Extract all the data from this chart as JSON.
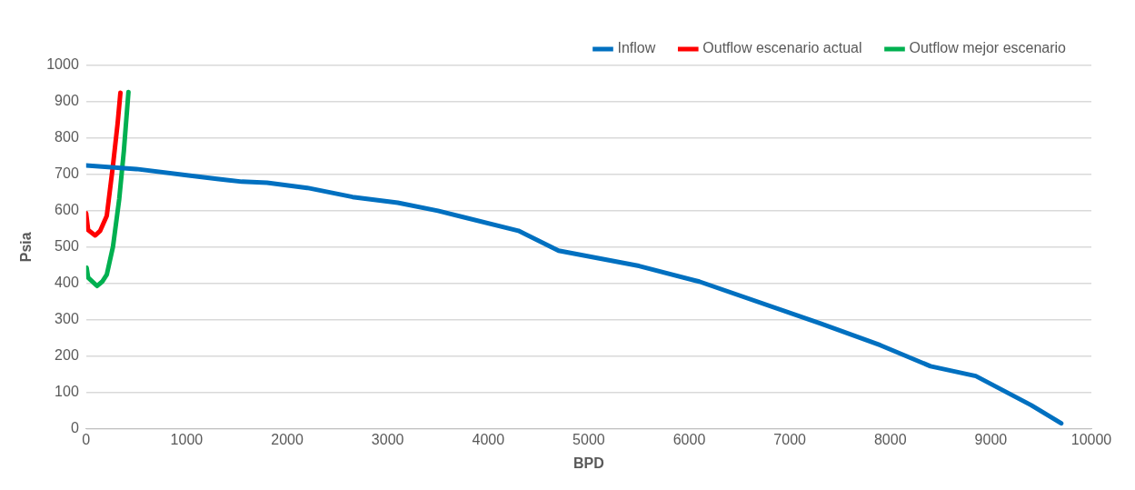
{
  "chart_data": {
    "type": "line",
    "xlabel": "BPD",
    "ylabel": "Psia",
    "xlim": [
      0,
      10000
    ],
    "xticks": [
      0,
      1000,
      2000,
      3000,
      4000,
      5000,
      6000,
      7000,
      8000,
      9000,
      10000
    ],
    "ylim": [
      0,
      1000
    ],
    "yticks": [
      0,
      100,
      200,
      300,
      400,
      500,
      600,
      700,
      800,
      900,
      1000
    ],
    "grid": "y",
    "legend": "top right",
    "marker": "none",
    "line_style": "solid",
    "series": [
      {
        "name": "Inflow",
        "color": "#0070c0",
        "x": [
          0,
          500,
          1000,
          1300,
          1550,
          1800,
          2200,
          2650,
          3100,
          3500,
          4300,
          4700,
          5500,
          6100,
          7300,
          7900,
          8400,
          8850,
          9400,
          9700
        ],
        "values": [
          725,
          715,
          698,
          688,
          680,
          677,
          663,
          638,
          622,
          600,
          545,
          490,
          448,
          405,
          290,
          230,
          172,
          145,
          65,
          15
        ]
      },
      {
        "name": "Outflow escenario actual",
        "color": "#ff0000",
        "x": [
          0,
          20,
          90,
          140,
          205,
          267,
          313,
          341
        ],
        "values": [
          593,
          547,
          532,
          545,
          586,
          725,
          840,
          925
        ]
      },
      {
        "name": "Outflow mejor escenario",
        "color": "#00b050",
        "x": [
          5,
          20,
          108,
          160,
          205,
          267,
          329,
          375,
          421
        ],
        "values": [
          443,
          416,
          393,
          405,
          424,
          501,
          632,
          764,
          927
        ]
      }
    ]
  }
}
